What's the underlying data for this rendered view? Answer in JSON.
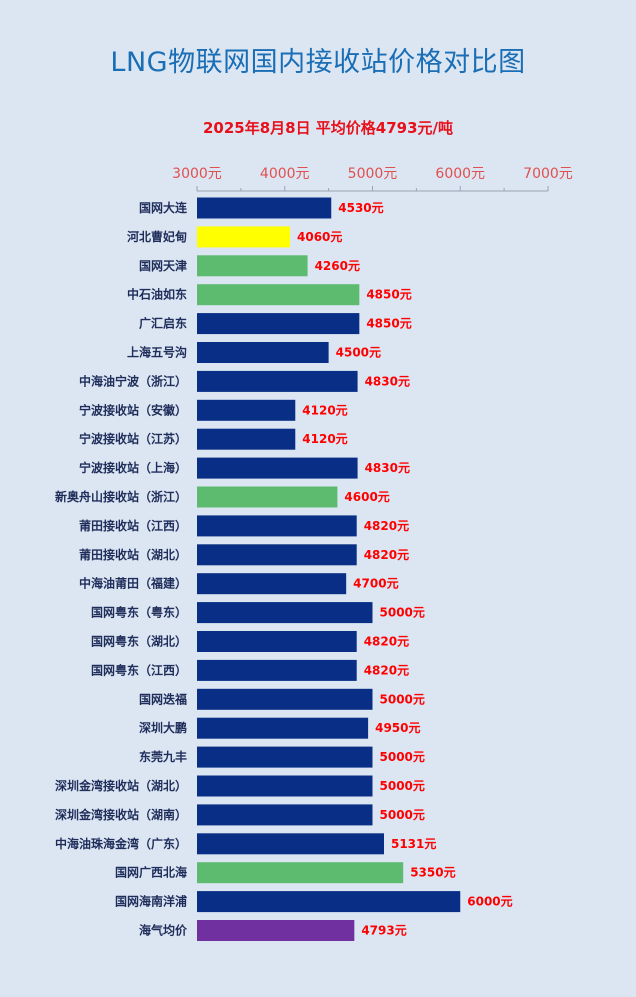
{
  "chart_data": {
    "type": "bar",
    "orientation": "horizontal",
    "title": "LNG物联网国内接收站价格对比图",
    "subtitle": "2025年8月8日 平均价格4793元/吨",
    "xlim": [
      3000,
      7000
    ],
    "ticks": [
      3000,
      4000,
      5000,
      6000,
      7000
    ],
    "tick_labels": [
      "3000元",
      "4000元",
      "5000元",
      "6000元",
      "7000元"
    ],
    "value_suffix": "元",
    "categories": [
      "国网大连",
      "河北曹妃甸",
      "国网天津",
      "中石油如东",
      "广汇启东",
      "上海五号沟",
      "中海油宁波（浙江）",
      "宁波接收站（安徽）",
      "宁波接收站（江苏）",
      "宁波接收站（上海）",
      "新奥舟山接收站（浙江）",
      "莆田接收站（江西）",
      "莆田接收站（湖北）",
      "中海油莆田（福建）",
      "国网粤东（粤东）",
      "国网粤东（湖北）",
      "国网粤东（江西）",
      "国网迭福",
      "深圳大鹏",
      "东莞九丰",
      "深圳金湾接收站（湖北）",
      "深圳金湾接收站（湖南）",
      "中海油珠海金湾（广东）",
      "国网广西北海",
      "国网海南洋浦",
      "海气均价"
    ],
    "values": [
      4530,
      4060,
      4260,
      4850,
      4850,
      4500,
      4830,
      4120,
      4120,
      4830,
      4600,
      4820,
      4820,
      4700,
      5000,
      4820,
      4820,
      5000,
      4950,
      5000,
      5000,
      5000,
      5131,
      5350,
      6000,
      4793
    ],
    "bar_colors": [
      "#082f85",
      "#ffff00",
      "#5cbb6e",
      "#5cbb6e",
      "#082f85",
      "#082f85",
      "#082f85",
      "#082f85",
      "#082f85",
      "#082f85",
      "#5cbb6e",
      "#082f85",
      "#082f85",
      "#082f85",
      "#082f85",
      "#082f85",
      "#082f85",
      "#082f85",
      "#082f85",
      "#082f85",
      "#082f85",
      "#082f85",
      "#082f85",
      "#5cbb6e",
      "#082f85",
      "#7030a0"
    ],
    "grid": false,
    "legend": "none"
  },
  "colors": {
    "background": "#dce6f3",
    "title": "#1a6eb5",
    "subtitle": "#e8101a",
    "value_label": "#ff0000",
    "tick_label": "#e05050",
    "category_label": "#1f2d5a"
  }
}
